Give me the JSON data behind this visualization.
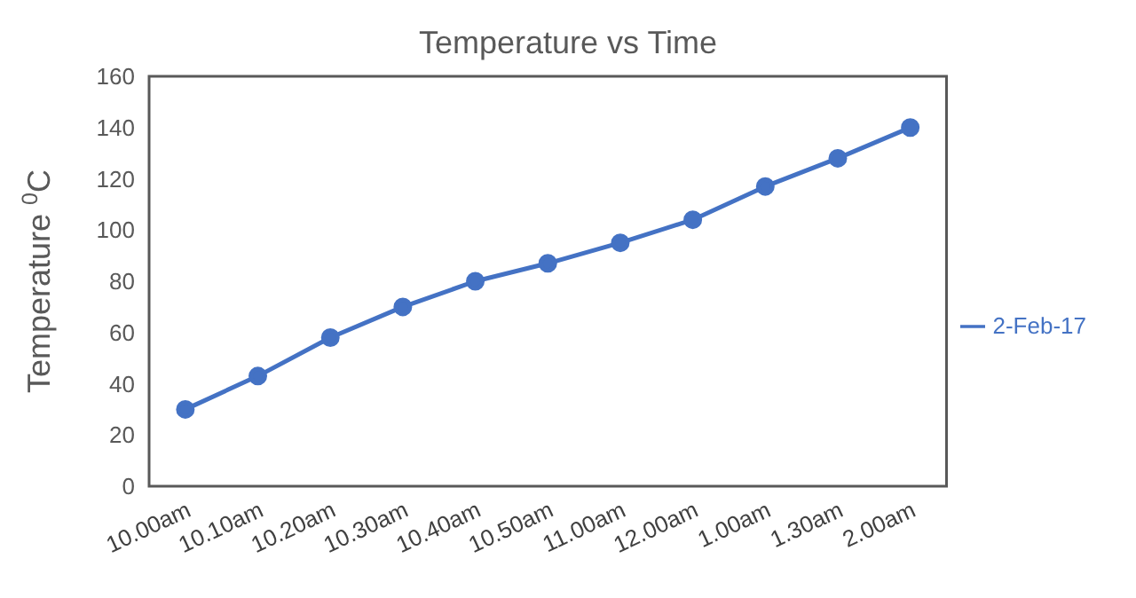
{
  "chart_data": {
    "type": "line",
    "title": "Temperature vs Time",
    "ylabel": "Temperature $^{0}$C",
    "categories": [
      "10.00am",
      "10.10am",
      "10.20am",
      "10.30am",
      "10.40am",
      "10.50am",
      "11.00am",
      "12.00am",
      "1.00am",
      "1.30am",
      "2.00am"
    ],
    "series": [
      {
        "name": "2-Feb-17",
        "color": "#4472c4",
        "values": [
          30,
          43,
          58,
          70,
          80,
          87,
          95,
          104,
          117,
          128,
          140
        ]
      }
    ],
    "ylim": [
      0,
      160
    ],
    "yticks": [
      0,
      20,
      40,
      60,
      80,
      100,
      120,
      140,
      160
    ],
    "grid": false,
    "legend": "right",
    "marker": "circle",
    "line_style": "solid"
  }
}
